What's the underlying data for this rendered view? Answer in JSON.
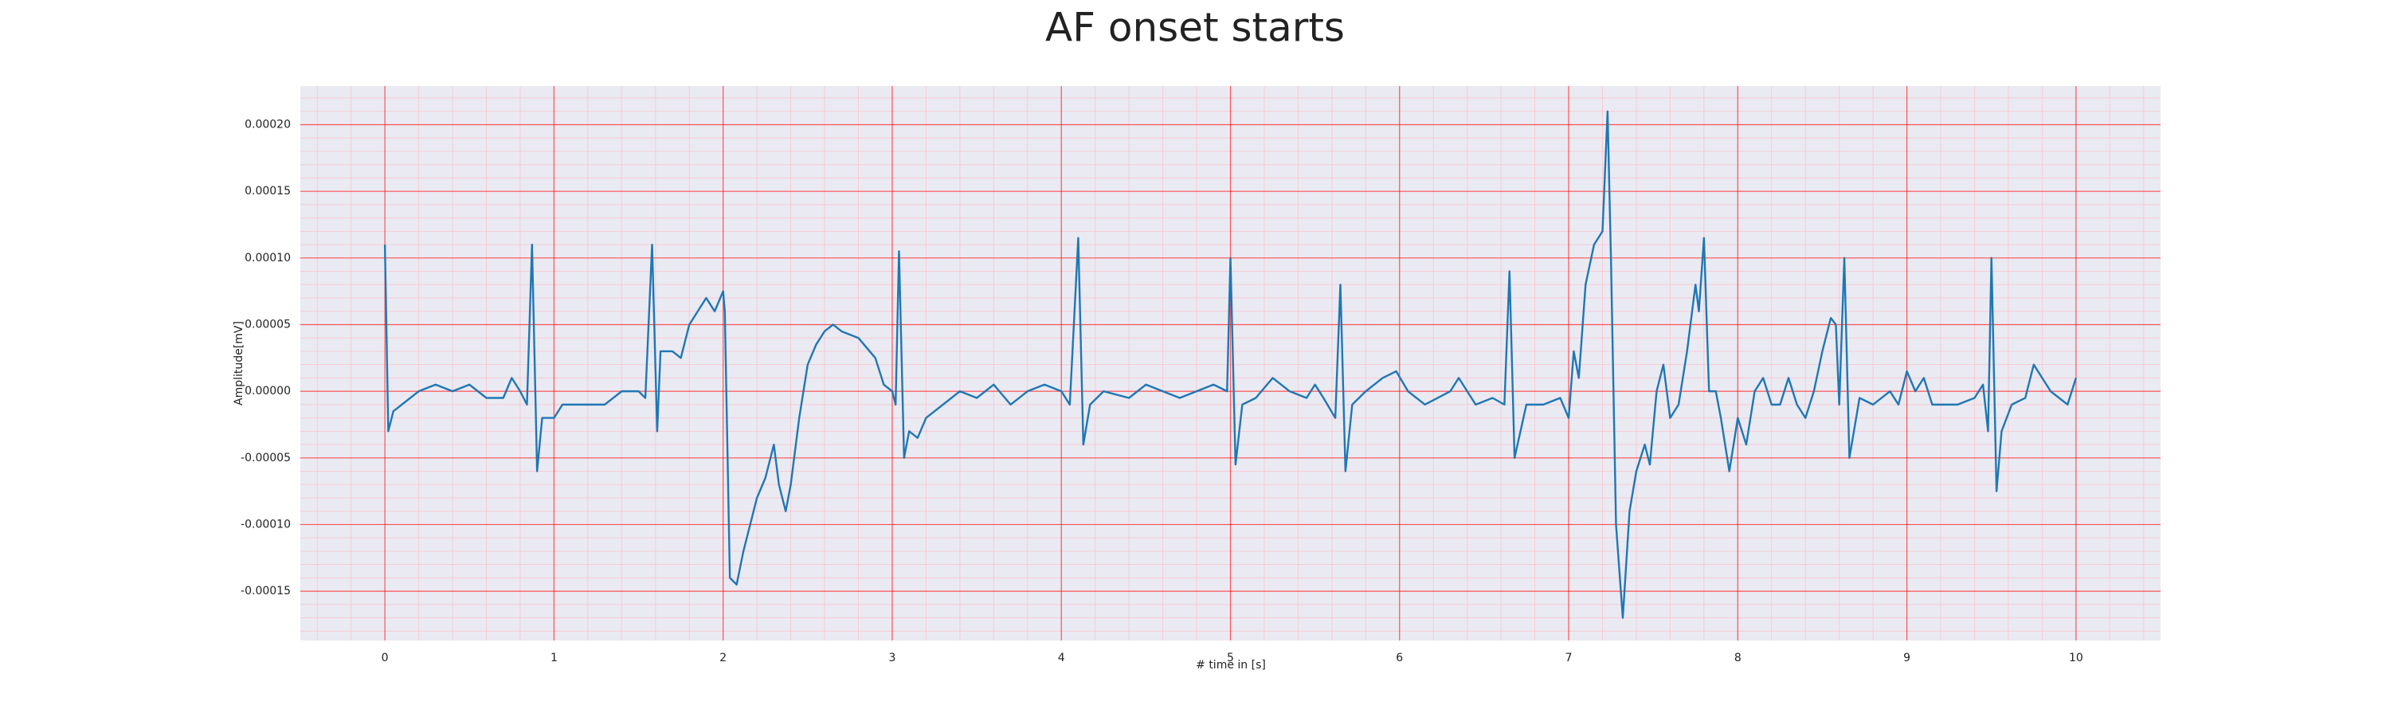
{
  "chart_data": {
    "type": "line",
    "title": "AF onset starts",
    "xlabel": "# time in [s]",
    "ylabel": "Amplitude[mV]",
    "color": "#1f77b4",
    "grid": true,
    "minor_grid": true,
    "xlim": [
      -0.5,
      10.5
    ],
    "xticks": [
      0,
      1,
      2,
      3,
      4,
      5,
      6,
      7,
      8,
      9,
      10
    ],
    "ylim": [
      -0.000187,
      0.000229
    ],
    "yticks": [
      {
        "value": -0.00015,
        "label": "-0.00015"
      },
      {
        "value": -0.0001,
        "label": "-0.00010"
      },
      {
        "value": -5e-05,
        "label": "-0.00005"
      },
      {
        "value": 0,
        "label": "0.00000"
      },
      {
        "value": 5e-05,
        "label": "0.00005"
      },
      {
        "value": 0.0001,
        "label": "0.00010"
      },
      {
        "value": 0.00015,
        "label": "0.00015"
      },
      {
        "value": 0.0002,
        "label": "0.00020"
      }
    ],
    "x": [
      0,
      0.02,
      0.05,
      0.1,
      0.15,
      0.2,
      0.3,
      0.4,
      0.5,
      0.6,
      0.7,
      0.75,
      0.8,
      0.84,
      0.87,
      0.9,
      0.93,
      1.0,
      1.05,
      1.15,
      1.3,
      1.4,
      1.5,
      1.54,
      1.58,
      1.61,
      1.63,
      1.7,
      1.75,
      1.8,
      1.85,
      1.9,
      1.95,
      2.0,
      2.01,
      2.04,
      2.08,
      2.12,
      2.2,
      2.25,
      2.3,
      2.33,
      2.37,
      2.4,
      2.45,
      2.5,
      2.55,
      2.6,
      2.65,
      2.7,
      2.8,
      2.9,
      2.95,
      3.0,
      3.02,
      3.04,
      3.07,
      3.1,
      3.15,
      3.2,
      3.3,
      3.4,
      3.5,
      3.6,
      3.7,
      3.8,
      3.9,
      4.0,
      4.05,
      4.1,
      4.13,
      4.17,
      4.25,
      4.4,
      4.5,
      4.6,
      4.7,
      4.8,
      4.9,
      4.98,
      5.0,
      5.03,
      5.07,
      5.15,
      5.25,
      5.35,
      5.45,
      5.5,
      5.55,
      5.62,
      5.65,
      5.68,
      5.72,
      5.8,
      5.9,
      5.98,
      6.05,
      6.15,
      6.3,
      6.35,
      6.45,
      6.55,
      6.62,
      6.65,
      6.68,
      6.75,
      6.85,
      6.95,
      7.0,
      7.03,
      7.06,
      7.1,
      7.15,
      7.2,
      7.23,
      7.25,
      7.28,
      7.32,
      7.36,
      7.4,
      7.45,
      7.48,
      7.52,
      7.56,
      7.6,
      7.65,
      7.7,
      7.75,
      7.77,
      7.8,
      7.83,
      7.87,
      7.9,
      7.95,
      8.0,
      8.05,
      8.1,
      8.15,
      8.2,
      8.25,
      8.3,
      8.35,
      8.4,
      8.45,
      8.5,
      8.55,
      8.58,
      8.6,
      8.63,
      8.66,
      8.72,
      8.8,
      8.9,
      8.95,
      9.0,
      9.05,
      9.1,
      9.15,
      9.2,
      9.3,
      9.4,
      9.45,
      9.48,
      9.5,
      9.53,
      9.56,
      9.62,
      9.7,
      9.75,
      9.8,
      9.85,
      9.9,
      9.95,
      10.0
    ],
    "values": [
      0.00011,
      -3e-05,
      -1.5e-05,
      -1e-05,
      -5e-06,
      0,
      5e-06,
      0,
      5e-06,
      -5e-06,
      -5e-06,
      1e-05,
      0,
      -1e-05,
      0.00011,
      -6e-05,
      -2e-05,
      -2e-05,
      -1e-05,
      -1e-05,
      -1e-05,
      0,
      0,
      -5e-06,
      0.00011,
      -3e-05,
      3e-05,
      3e-05,
      2.5e-05,
      5e-05,
      6e-05,
      7e-05,
      6e-05,
      7.5e-05,
      6e-05,
      -0.00014,
      -0.000145,
      -0.00012,
      -8e-05,
      -6.5e-05,
      -4e-05,
      -7e-05,
      -9e-05,
      -7e-05,
      -2e-05,
      2e-05,
      3.5e-05,
      4.5e-05,
      5e-05,
      4.5e-05,
      4e-05,
      2.5e-05,
      5e-06,
      0,
      -1e-05,
      0.000105,
      -5e-05,
      -3e-05,
      -3.5e-05,
      -2e-05,
      -1e-05,
      0,
      -5e-06,
      5e-06,
      -1e-05,
      0,
      5e-06,
      0,
      -1e-05,
      0.000115,
      -4e-05,
      -1e-05,
      0,
      -5e-06,
      5e-06,
      0,
      -5e-06,
      0,
      5e-06,
      0,
      0.0001,
      -5.5e-05,
      -1e-05,
      -5e-06,
      1e-05,
      0,
      -5e-06,
      5e-06,
      -5e-06,
      -2e-05,
      8e-05,
      -6e-05,
      -1e-05,
      0,
      1e-05,
      1.5e-05,
      0,
      -1e-05,
      0,
      1e-05,
      -1e-05,
      -5e-06,
      -1e-05,
      9e-05,
      -5e-05,
      -1e-05,
      -1e-05,
      -5e-06,
      -2e-05,
      3e-05,
      1e-05,
      8e-05,
      0.00011,
      0.00012,
      0.00021,
      0.0001,
      -0.0001,
      -0.00017,
      -9e-05,
      -6e-05,
      -4e-05,
      -5.5e-05,
      0,
      2e-05,
      -2e-05,
      -1e-05,
      3e-05,
      8e-05,
      6e-05,
      0.000115,
      0,
      0,
      -2e-05,
      -6e-05,
      -2e-05,
      -4e-05,
      0,
      1e-05,
      -1e-05,
      -1e-05,
      1e-05,
      -1e-05,
      -2e-05,
      0,
      3e-05,
      5.5e-05,
      5e-05,
      -1e-05,
      0.0001,
      -5e-05,
      -5e-06,
      -1e-05,
      0,
      -1e-05,
      1.5e-05,
      0,
      1e-05,
      -1e-05,
      -1e-05,
      -1e-05,
      -5e-06,
      5e-06,
      -3e-05,
      0.0001,
      -7.5e-05,
      -3e-05,
      -1e-05,
      -5e-06,
      2e-05,
      1e-05,
      0,
      -5e-06,
      -1e-05,
      1e-05
    ]
  }
}
